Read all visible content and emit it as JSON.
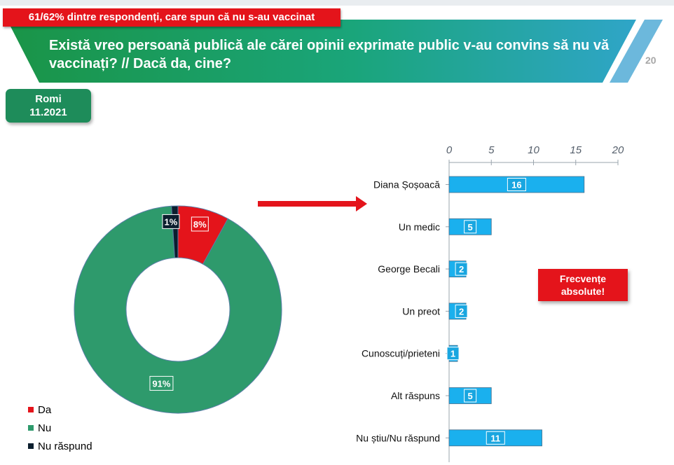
{
  "header": {
    "tag": "61/62% dintre respondenți, care spun că nu s-au vaccinat",
    "question": "Există vreo persoană publică ale cărei opinii exprimate public v-au convins să nu vă vaccinați? // Dacă da, cine?",
    "page_number": "20"
  },
  "segment_label": {
    "line1": "Romi",
    "line2": "11.2021"
  },
  "note": {
    "line1": "Frecvențe",
    "line2": "absolute!"
  },
  "colors": {
    "da": "#e4141b",
    "nu": "#2e9a6c",
    "nu_raspund": "#0b1e2e",
    "bar": "#1ab0ee",
    "green": "#1e8c5a"
  },
  "chart_data": [
    {
      "type": "pie",
      "donut": true,
      "categories": [
        "Da",
        "Nu",
        "Nu răspund"
      ],
      "values": [
        8,
        91,
        1
      ],
      "value_labels": [
        "8%",
        "91%",
        "1%"
      ],
      "legend_placement": "bottom-left"
    },
    {
      "type": "bar",
      "orientation": "horizontal",
      "categories": [
        "Diana Șoșoacă",
        "Un medic",
        "George Becali",
        "Un preot",
        "Cunoscuți/prieteni",
        "Alt răspuns",
        "Nu știu/Nu răspund"
      ],
      "values": [
        16,
        5,
        2,
        2,
        1,
        5,
        11
      ],
      "xlim": [
        0,
        20
      ],
      "xticks": [
        "0",
        "5",
        "10",
        "15",
        "20"
      ],
      "axis_position": "top",
      "grid": false
    }
  ]
}
